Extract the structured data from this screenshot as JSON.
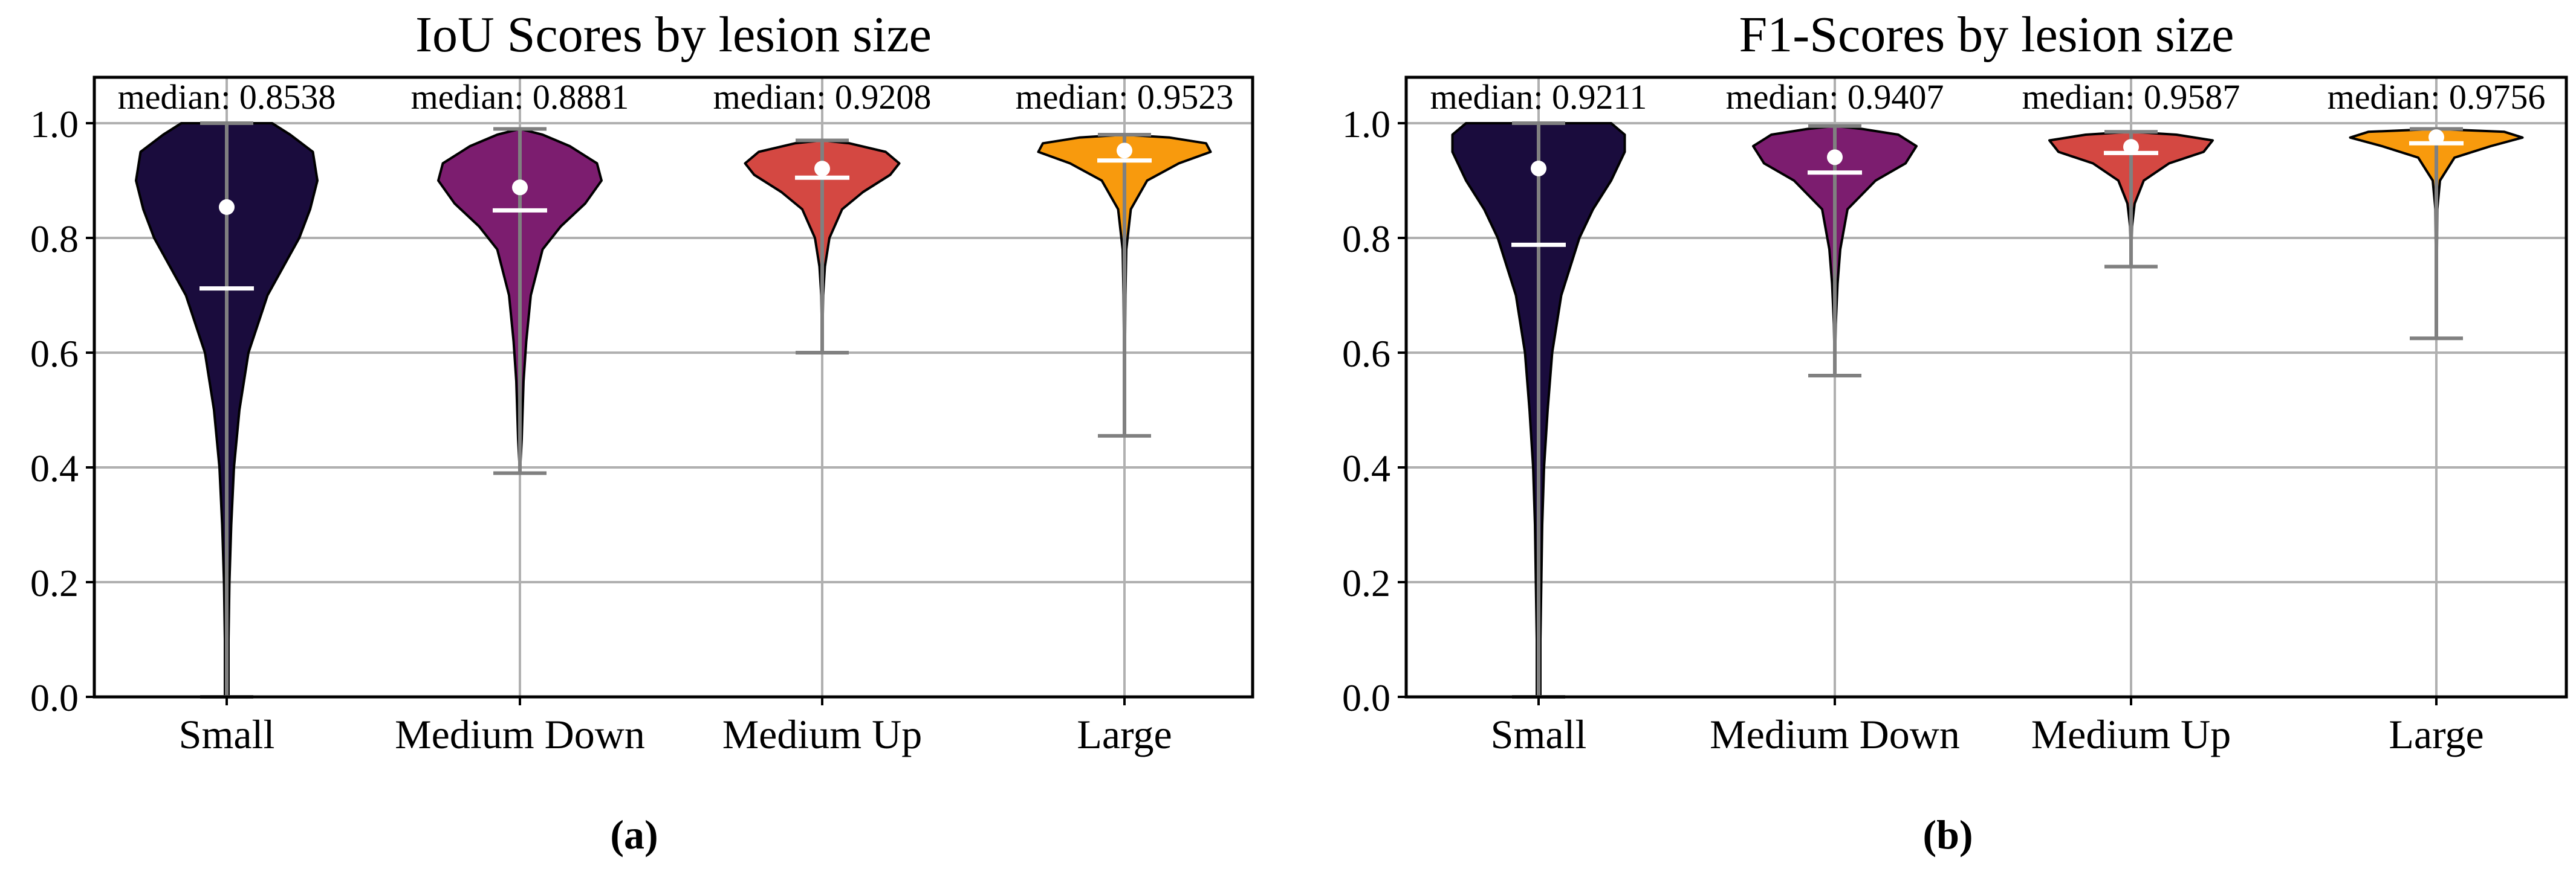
{
  "chart_data": [
    {
      "type": "violin",
      "panel_label": "(a)",
      "title": "IoU Scores by lesion size",
      "xlabel": "",
      "ylabel": "",
      "ylim": [
        0,
        1.08
      ],
      "yticks": [
        0.0,
        0.2,
        0.4,
        0.6,
        0.8,
        1.0
      ],
      "ytick_labels": [
        "0.0",
        "0.2",
        "0.4",
        "0.6",
        "0.8",
        "1.0"
      ],
      "grid": true,
      "categories": [
        "Small",
        "Medium Down",
        "Medium Up",
        "Large"
      ],
      "colors": [
        "#1a0c3d",
        "#7c1d6f",
        "#d44842",
        "#f89a0d"
      ],
      "violins": [
        {
          "category": "Small",
          "min": 0.0,
          "max": 1.0,
          "median": 0.8538,
          "mean": 0.712,
          "median_label": "median: 0.8538",
          "density": [
            [
              0.0,
              0.02
            ],
            [
              0.1,
              0.02
            ],
            [
              0.2,
              0.03
            ],
            [
              0.3,
              0.05
            ],
            [
              0.4,
              0.08
            ],
            [
              0.5,
              0.14
            ],
            [
              0.6,
              0.24
            ],
            [
              0.7,
              0.45
            ],
            [
              0.8,
              0.8
            ],
            [
              0.85,
              0.92
            ],
            [
              0.9,
              1.0
            ],
            [
              0.95,
              0.95
            ],
            [
              0.98,
              0.7
            ],
            [
              1.0,
              0.5
            ]
          ]
        },
        {
          "category": "Medium Down",
          "min": 0.39,
          "max": 0.99,
          "median": 0.8881,
          "mean": 0.848,
          "median_label": "median: 0.8881",
          "density": [
            [
              0.39,
              0.0
            ],
            [
              0.45,
              0.02
            ],
            [
              0.55,
              0.04
            ],
            [
              0.62,
              0.07
            ],
            [
              0.7,
              0.12
            ],
            [
              0.78,
              0.25
            ],
            [
              0.82,
              0.45
            ],
            [
              0.86,
              0.72
            ],
            [
              0.9,
              0.9
            ],
            [
              0.93,
              0.85
            ],
            [
              0.96,
              0.55
            ],
            [
              0.98,
              0.25
            ],
            [
              0.99,
              0.0
            ]
          ]
        },
        {
          "category": "Medium Up",
          "min": 0.6,
          "max": 0.97,
          "median": 0.9208,
          "mean": 0.905,
          "median_label": "median: 0.9208",
          "density": [
            [
              0.6,
              0.0
            ],
            [
              0.7,
              0.01
            ],
            [
              0.75,
              0.03
            ],
            [
              0.8,
              0.08
            ],
            [
              0.85,
              0.22
            ],
            [
              0.88,
              0.45
            ],
            [
              0.91,
              0.75
            ],
            [
              0.93,
              0.85
            ],
            [
              0.95,
              0.7
            ],
            [
              0.965,
              0.3
            ],
            [
              0.97,
              0.0
            ]
          ]
        },
        {
          "category": "Large",
          "min": 0.455,
          "max": 0.98,
          "median": 0.9523,
          "mean": 0.935,
          "median_label": "median: 0.9523",
          "density": [
            [
              0.455,
              0.0
            ],
            [
              0.6,
              0.005
            ],
            [
              0.7,
              0.01
            ],
            [
              0.78,
              0.02
            ],
            [
              0.85,
              0.07
            ],
            [
              0.9,
              0.25
            ],
            [
              0.93,
              0.6
            ],
            [
              0.95,
              0.95
            ],
            [
              0.965,
              0.9
            ],
            [
              0.975,
              0.5
            ],
            [
              0.98,
              0.0
            ]
          ]
        }
      ]
    },
    {
      "type": "violin",
      "panel_label": "(b)",
      "title": "F1-Scores by lesion size",
      "xlabel": "",
      "ylabel": "",
      "ylim": [
        0,
        1.08
      ],
      "yticks": [
        0.0,
        0.2,
        0.4,
        0.6,
        0.8,
        1.0
      ],
      "ytick_labels": [
        "0.0",
        "0.2",
        "0.4",
        "0.6",
        "0.8",
        "1.0"
      ],
      "grid": true,
      "categories": [
        "Small",
        "Medium Down",
        "Medium Up",
        "Large"
      ],
      "colors": [
        "#1a0c3d",
        "#7c1d6f",
        "#d44842",
        "#f89a0d"
      ],
      "violins": [
        {
          "category": "Small",
          "min": 0.0,
          "max": 1.0,
          "median": 0.9211,
          "mean": 0.788,
          "median_label": "median: 0.9211",
          "density": [
            [
              0.0,
              0.02
            ],
            [
              0.1,
              0.02
            ],
            [
              0.2,
              0.03
            ],
            [
              0.3,
              0.04
            ],
            [
              0.4,
              0.06
            ],
            [
              0.5,
              0.1
            ],
            [
              0.6,
              0.15
            ],
            [
              0.7,
              0.25
            ],
            [
              0.8,
              0.45
            ],
            [
              0.85,
              0.6
            ],
            [
              0.9,
              0.8
            ],
            [
              0.95,
              0.95
            ],
            [
              0.98,
              0.95
            ],
            [
              1.0,
              0.8
            ]
          ]
        },
        {
          "category": "Medium Down",
          "min": 0.56,
          "max": 0.995,
          "median": 0.9407,
          "mean": 0.914,
          "median_label": "median: 0.9407",
          "density": [
            [
              0.56,
              0.0
            ],
            [
              0.65,
              0.01
            ],
            [
              0.72,
              0.03
            ],
            [
              0.78,
              0.06
            ],
            [
              0.85,
              0.14
            ],
            [
              0.9,
              0.45
            ],
            [
              0.93,
              0.78
            ],
            [
              0.96,
              0.9
            ],
            [
              0.98,
              0.7
            ],
            [
              0.99,
              0.3
            ],
            [
              0.995,
              0.0
            ]
          ]
        },
        {
          "category": "Medium Up",
          "min": 0.75,
          "max": 0.985,
          "median": 0.9587,
          "mean": 0.948,
          "median_label": "median: 0.9587",
          "density": [
            [
              0.75,
              0.0
            ],
            [
              0.82,
              0.01
            ],
            [
              0.86,
              0.04
            ],
            [
              0.9,
              0.14
            ],
            [
              0.93,
              0.42
            ],
            [
              0.95,
              0.8
            ],
            [
              0.97,
              0.9
            ],
            [
              0.98,
              0.5
            ],
            [
              0.985,
              0.0
            ]
          ]
        },
        {
          "category": "Large",
          "min": 0.625,
          "max": 0.99,
          "median": 0.9756,
          "mean": 0.965,
          "median_label": "median: 0.9756",
          "density": [
            [
              0.625,
              0.0
            ],
            [
              0.75,
              0.005
            ],
            [
              0.85,
              0.01
            ],
            [
              0.9,
              0.04
            ],
            [
              0.94,
              0.2
            ],
            [
              0.96,
              0.6
            ],
            [
              0.975,
              0.95
            ],
            [
              0.985,
              0.75
            ],
            [
              0.99,
              0.0
            ]
          ]
        }
      ]
    }
  ]
}
